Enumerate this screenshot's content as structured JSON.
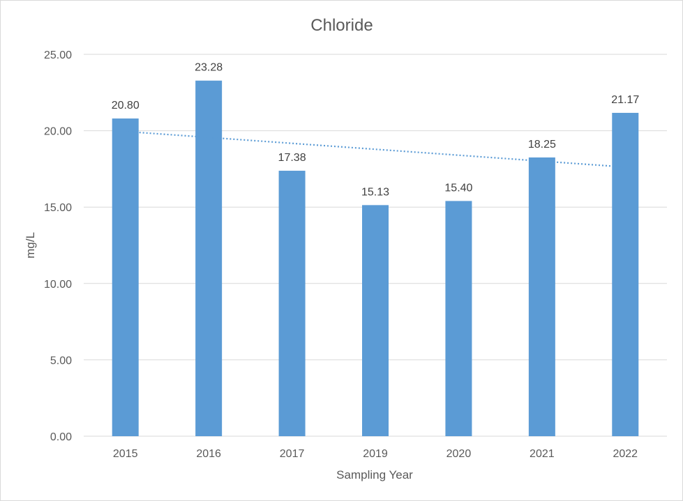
{
  "chart_data": {
    "type": "bar",
    "title": "Chloride",
    "xlabel": "Sampling Year",
    "ylabel": "mg/L",
    "categories": [
      "2015",
      "2016",
      "2017",
      "2019",
      "2020",
      "2021",
      "2022"
    ],
    "values": [
      20.8,
      23.28,
      17.38,
      15.13,
      15.4,
      18.25,
      21.17
    ],
    "data_labels": [
      "20.80",
      "23.28",
      "17.38",
      "15.13",
      "15.40",
      "18.25",
      "21.17"
    ],
    "ylim": [
      0,
      25
    ],
    "yticks": [
      "0.00",
      "5.00",
      "10.00",
      "15.00",
      "20.00",
      "25.00"
    ],
    "grid": true,
    "legend": "none",
    "trendline": {
      "type": "linear",
      "style": "dotted",
      "start": 19.95,
      "end": 17.62
    },
    "colors": {
      "bar": "#5b9bd5",
      "trendline": "#5b9bd5",
      "grid": "#d9d9d9"
    }
  }
}
